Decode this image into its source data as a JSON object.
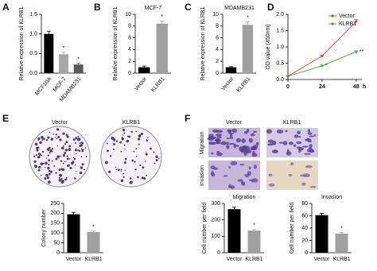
{
  "figure": {
    "panel_labels": [
      "A",
      "B",
      "C",
      "D",
      "E",
      "F"
    ],
    "colony_labels": [
      "Vector",
      "KLRB1"
    ],
    "transwell_columns": [
      "Vector",
      "KLRB1"
    ],
    "transwell_rows": [
      "Migration",
      "Invasion"
    ]
  },
  "chart_data": [
    {
      "type": "bar",
      "y_label": "Relative expression of KLRB1",
      "categories": [
        "MCF10A",
        "MCF-7",
        "MDAMB231"
      ],
      "values": [
        1.0,
        0.48,
        0.22
      ],
      "errors": [
        0.07,
        0.05,
        0.03
      ],
      "colors": [
        "#000000",
        "#a6a6a6",
        "#595959"
      ],
      "significance": [
        null,
        "*",
        "*"
      ],
      "ylim": [
        0,
        1.5
      ],
      "yticks": [
        {
          "value": 0,
          "label": "0.0"
        },
        0.5,
        {
          "value": 1,
          "label": "1.0"
        },
        1.5
      ]
    },
    {
      "type": "bar",
      "title": "MCF-7",
      "y_label": "Relative expression of KLRB1",
      "categories": [
        "Vector",
        "KLRB1"
      ],
      "values": [
        1,
        8.4
      ],
      "errors": [
        0.2,
        0.5
      ],
      "colors": [
        "#000000",
        "#a0a0a0"
      ],
      "significance": [
        null,
        "*"
      ],
      "ylim": [
        0,
        10
      ],
      "yticks": [
        0,
        2,
        4,
        6,
        8,
        10
      ]
    },
    {
      "type": "bar",
      "title": "MDAMB231",
      "y_label": "Relative expression of KLRB1",
      "categories": [
        "Vector",
        "KLRB1"
      ],
      "values": [
        1,
        8.2
      ],
      "errors": [
        0.1,
        0.5
      ],
      "colors": [
        "#000000",
        "#a0a0a0"
      ],
      "significance": [
        null,
        "*"
      ],
      "ylim": [
        0,
        10
      ],
      "yticks": [
        0,
        2,
        4,
        6,
        8,
        10
      ]
    },
    {
      "type": "line",
      "y_label": "OD value (450nm)",
      "x_label": "h",
      "x": [
        0,
        24,
        48
      ],
      "xlim": [
        0,
        52
      ],
      "xticks": [
        0,
        24,
        48
      ],
      "ylim": [
        0,
        2
      ],
      "yticks": [
        {
          "value": 0,
          "label": "0.0"
        },
        0.5,
        {
          "value": 1,
          "label": "1.0"
        },
        1.5,
        {
          "value": 2,
          "label": "2.0"
        }
      ],
      "legend": "top-right",
      "series": [
        {
          "name": "Vector",
          "color": "#e8433a",
          "values": [
            0.1,
            0.72,
            1.78
          ],
          "errors": [
            0.01,
            0.03,
            0.06
          ],
          "significance": [
            null,
            null,
            null
          ]
        },
        {
          "name": "KLRB1",
          "color": "#3aa845",
          "values": [
            0.1,
            0.42,
            0.85
          ],
          "errors": [
            0.01,
            0.02,
            0.03
          ],
          "significance": [
            null,
            "*",
            "**"
          ]
        }
      ]
    },
    {
      "type": "bar",
      "y_label": "Colony number",
      "categories": [
        "Vector",
        "KLRB1"
      ],
      "values": [
        195,
        105
      ],
      "errors": [
        10,
        5
      ],
      "colors": [
        "#000000",
        "#a0a0a0"
      ],
      "significance": [
        null,
        "*"
      ],
      "ylim": [
        0,
        250
      ],
      "yticks": [
        0,
        50,
        100,
        150,
        200,
        250
      ]
    },
    {
      "type": "bar",
      "title": "Migration",
      "y_label": "Cell number per field",
      "categories": [
        "Vector",
        "KLRB1"
      ],
      "values": [
        265,
        135
      ],
      "errors": [
        12,
        6
      ],
      "colors": [
        "#000000",
        "#a0a0a0"
      ],
      "significance": [
        null,
        "*"
      ],
      "ylim": [
        0,
        300
      ],
      "yticks": [
        0,
        100,
        200,
        300
      ]
    },
    {
      "type": "bar",
      "title": "Invasion",
      "y_label": "Cell number per field",
      "categories": [
        "Vector",
        "KLRB1"
      ],
      "values": [
        61,
        31
      ],
      "errors": [
        3,
        2
      ],
      "colors": [
        "#000000",
        "#a0a0a0"
      ],
      "significance": [
        null,
        "*"
      ],
      "ylim": [
        0,
        80
      ],
      "yticks": [
        0,
        20,
        40,
        60,
        80
      ]
    }
  ]
}
